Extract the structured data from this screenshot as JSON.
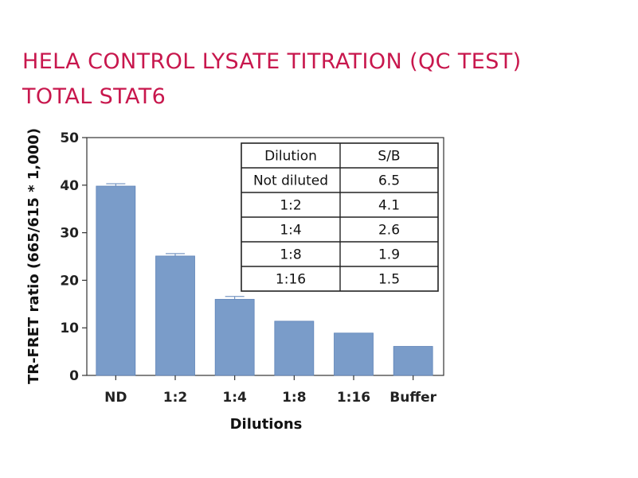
{
  "title_lines": [
    "HELA CONTROL LYSATE TITRATION (QC TEST)",
    "TOTAL STAT6"
  ],
  "colors": {
    "title": "#c8174d",
    "bar": "#7a9cc9",
    "bar_edge": "#5f84b8",
    "axis": "#333333",
    "table_border": "#222222"
  },
  "chart_data": {
    "type": "bar",
    "title": "HELA CONTROL LYSATE TITRATION (QC TEST) TOTAL STAT6",
    "categories": [
      "ND",
      "1:2",
      "1:4",
      "1:8",
      "1:16",
      "Buffer"
    ],
    "values": [
      39.8,
      25.1,
      16.0,
      11.4,
      8.9,
      6.1
    ],
    "error": [
      0.5,
      0.5,
      0.6,
      0,
      0,
      0
    ],
    "xlabel": "Dilutions",
    "ylabel": "TR-FRET ratio (665/615 * 1,000)",
    "ylim": [
      0,
      50
    ],
    "yticks": [
      0,
      10,
      20,
      30,
      40,
      50
    ],
    "grid": false,
    "legend": "none",
    "table": {
      "headers": [
        "Dilution",
        "S/B"
      ],
      "rows": [
        [
          "Not diluted",
          "6.5"
        ],
        [
          "1:2",
          "4.1"
        ],
        [
          "1:4",
          "2.6"
        ],
        [
          "1:8",
          "1.9"
        ],
        [
          "1:16",
          "1.5"
        ]
      ]
    }
  }
}
